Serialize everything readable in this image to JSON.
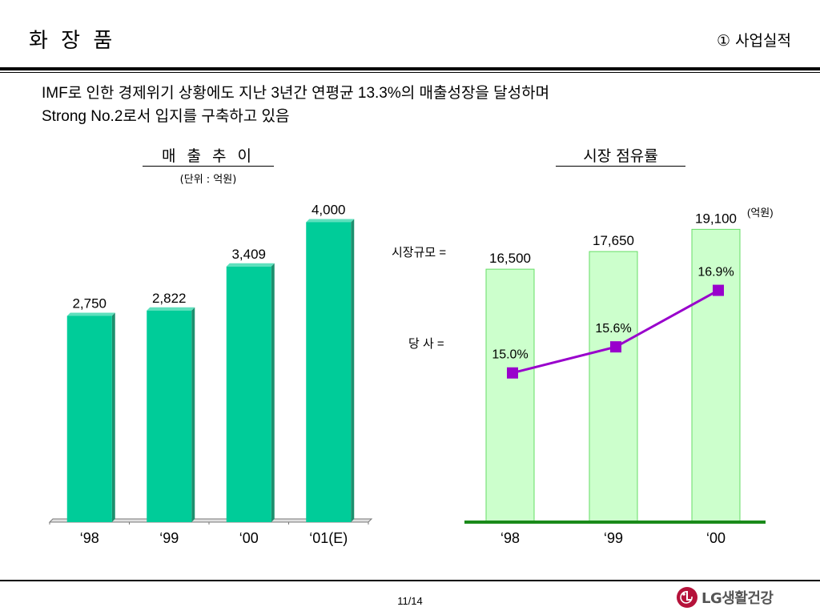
{
  "header": {
    "title": "화 장 품",
    "section": "① 사업실적"
  },
  "summary": {
    "line1": "IMF로 인한 경제위기 상황에도 지난 3년간 연평균  13.3%의 매출성장을 달성하며",
    "line2": "Strong No.2로서 입지를 구축하고 있음"
  },
  "chart_data": [
    {
      "type": "bar",
      "title": "매 출 추 이",
      "subtitle": "(단위 : 억원)",
      "categories": [
        "‘98",
        "‘99",
        "‘00",
        "‘01(E)"
      ],
      "values": [
        2750,
        2822,
        3409,
        4000
      ],
      "value_labels": [
        "2,750",
        "2,822",
        "3,409",
        "4,000"
      ],
      "ylim": [
        0,
        4400
      ],
      "grid": false,
      "bar_color": "#00cc99"
    },
    {
      "type": "bar",
      "title": "시장 점유률",
      "categories": [
        "‘98",
        "‘99",
        "‘00"
      ],
      "series": [
        {
          "name": "시장규모",
          "type": "bar",
          "values": [
            16500,
            17650,
            19100
          ],
          "value_labels": [
            "16,500",
            "17,650",
            "19,100"
          ],
          "color": "#ccffcc"
        },
        {
          "name": "당   사",
          "type": "line",
          "values": [
            15.0,
            15.6,
            16.9
          ],
          "value_labels": [
            "15.0%",
            "15.6%",
            "16.9%"
          ],
          "color": "#9900cc"
        }
      ],
      "row_labels": {
        "market": "시장규모 =",
        "company": "당   사 ="
      },
      "unit_note": "(억원)",
      "bar_ylim": [
        0,
        21000
      ],
      "line_ylim": [
        14.0,
        17.5
      ],
      "grid": false
    }
  ],
  "footer": {
    "page": "11/14",
    "logo_text": "LG생활건강",
    "logo_color": "#b5123a"
  }
}
